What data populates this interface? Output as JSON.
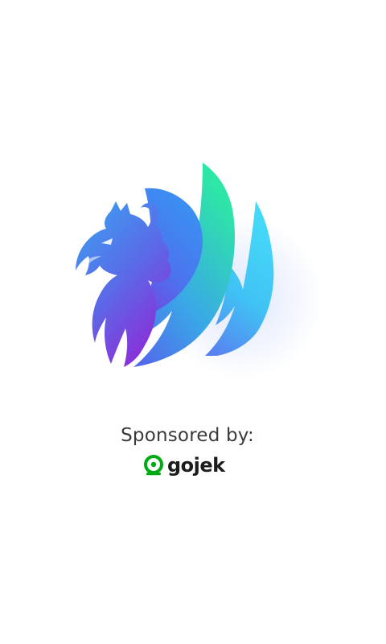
{
  "splash": {
    "sponsor_label": "Sponsored by:",
    "sponsor_name": "gojek",
    "logo_icon": "griffin-wing-logo-icon",
    "brand_icon": "gojek-icon",
    "colors": {
      "background": "#ffffff",
      "logo_violet": "#7b35e0",
      "logo_blue": "#3a7af0",
      "logo_cyan": "#3fd0f5",
      "logo_green": "#2fe0a8",
      "gojek_green": "#00aa13"
    }
  }
}
